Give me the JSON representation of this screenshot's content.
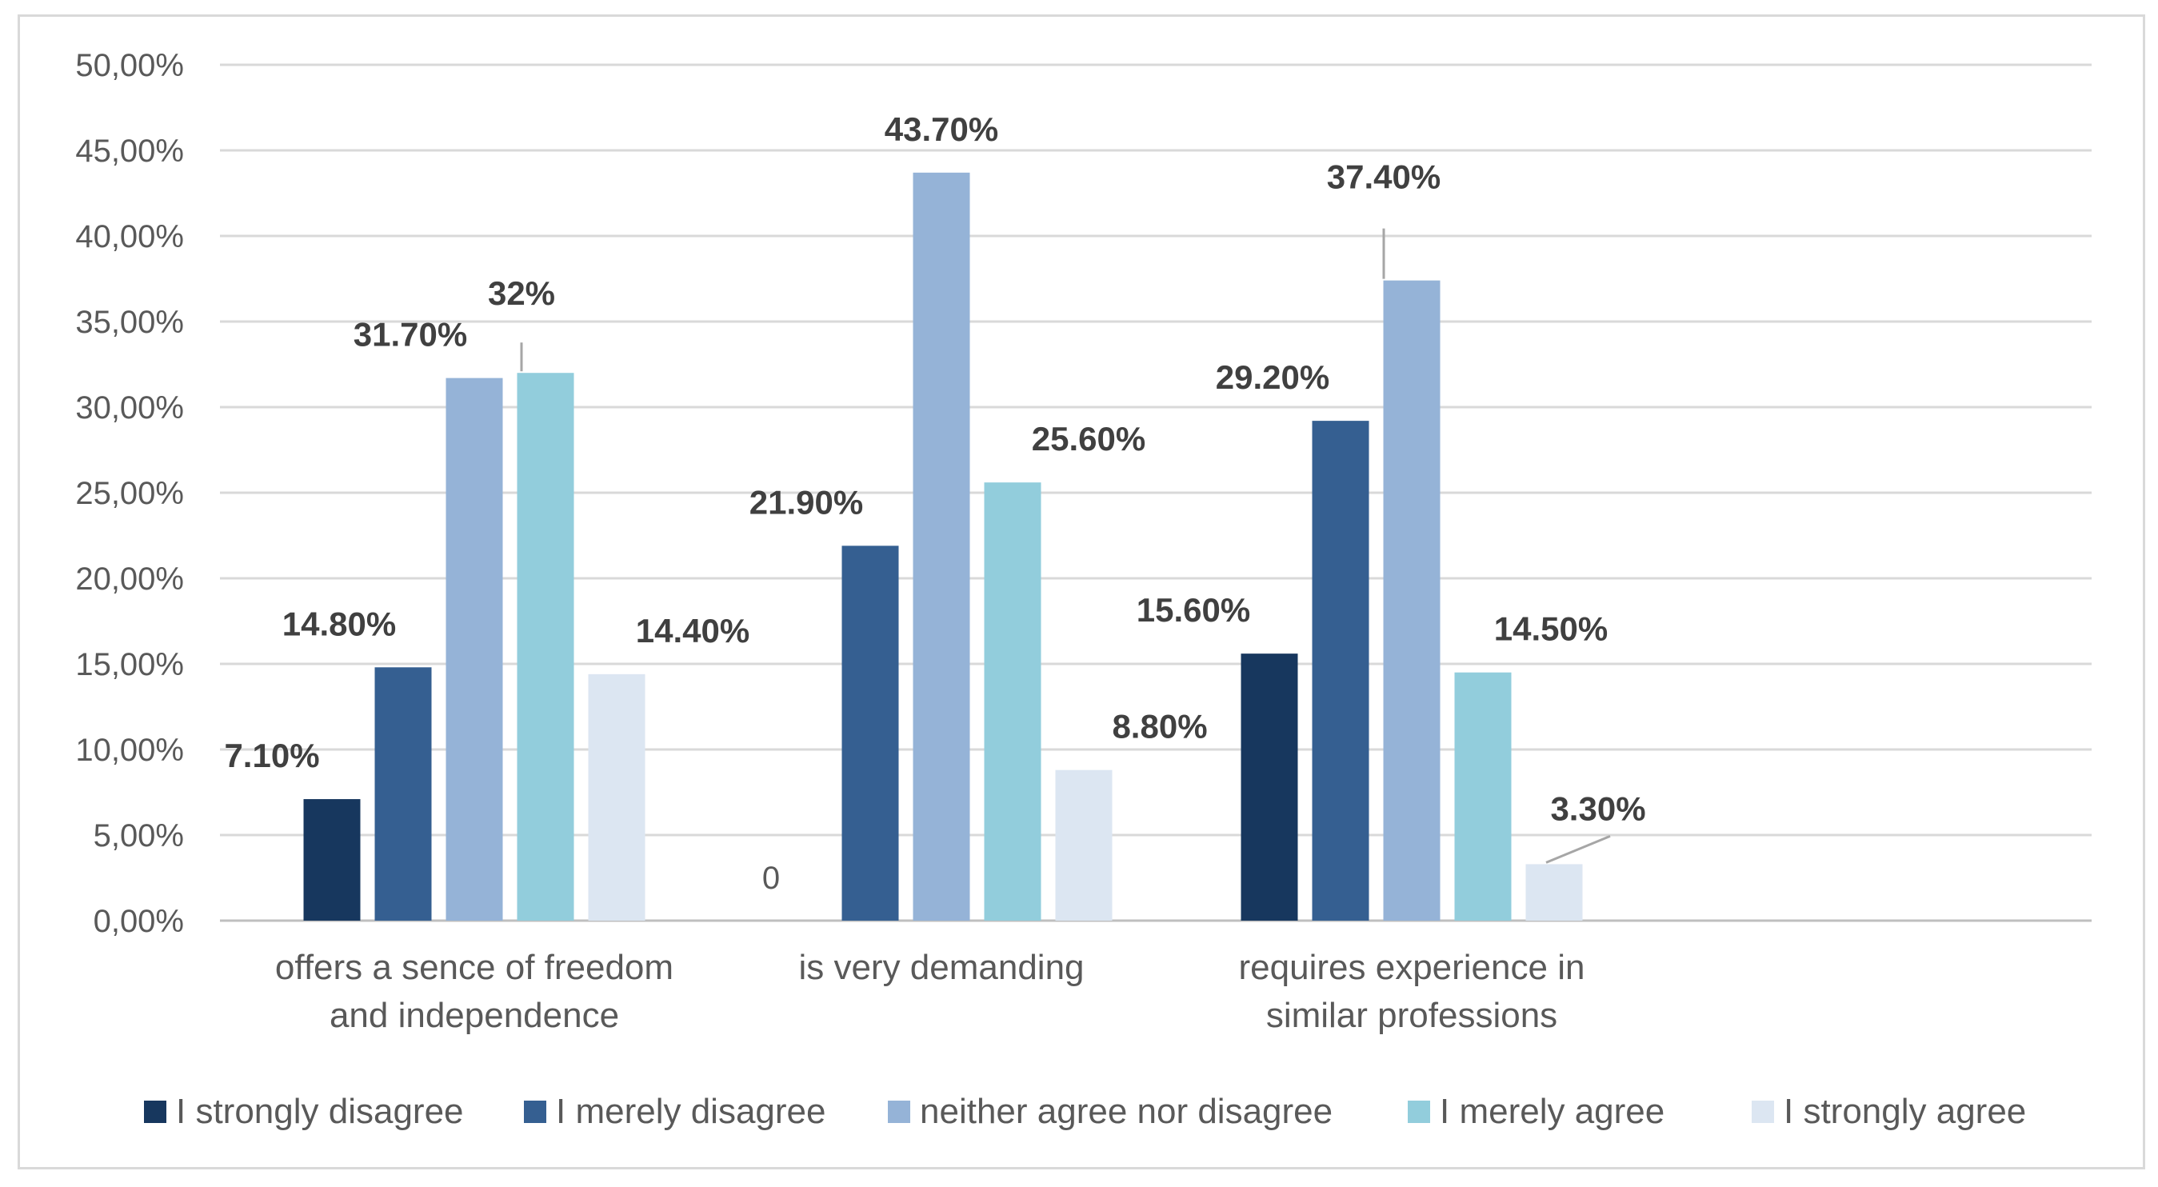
{
  "chart_data": {
    "type": "bar",
    "title": "",
    "xlabel": "",
    "ylabel": "",
    "ylim": [
      0,
      0.5
    ],
    "grid": true,
    "legend_position": "bottom",
    "y_ticks": [
      "0,00%",
      "5,00%",
      "10,00%",
      "15,00%",
      "20,00%",
      "25,00%",
      "30,00%",
      "35,00%",
      "40,00%",
      "45,00%",
      "50,00%"
    ],
    "categories": [
      [
        "offers a sence of freedom",
        "and independence"
      ],
      [
        "is very demanding"
      ],
      [
        "requires experience in",
        "similar professions"
      ]
    ],
    "series": [
      {
        "name": "I strongly disagree",
        "color": "#17375e",
        "values": [
          0.071,
          0.0,
          0.156
        ],
        "labels": [
          "7.10%",
          "0",
          "15.60%"
        ]
      },
      {
        "name": "I merely disagree",
        "color": "#355f91",
        "values": [
          0.148,
          0.219,
          0.292
        ],
        "labels": [
          "14.80%",
          "21.90%",
          "29.20%"
        ]
      },
      {
        "name": "neither agree nor disagree",
        "color": "#95b3d7",
        "values": [
          0.317,
          0.437,
          0.374
        ],
        "labels": [
          "31.70%",
          "43.70%",
          "37.40%"
        ]
      },
      {
        "name": "I merely agree",
        "color": "#92cddc",
        "values": [
          0.32,
          0.256,
          0.145
        ],
        "labels": [
          "32%",
          "25.60%",
          "14.50%"
        ]
      },
      {
        "name": "I strongly agree",
        "color": "#dce6f2",
        "values": [
          0.144,
          0.088,
          0.033
        ],
        "labels": [
          "14.40%",
          "8.80%",
          "3.30%"
        ]
      }
    ]
  }
}
